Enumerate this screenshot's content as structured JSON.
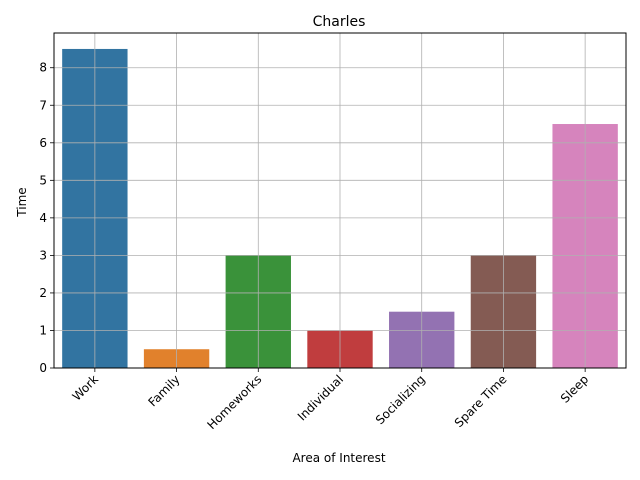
{
  "chart_data": {
    "type": "bar",
    "title": "Charles",
    "xlabel": "Area of Interest",
    "ylabel": "Time",
    "categories": [
      "Work",
      "Family",
      "Homeworks",
      "Individual",
      "Socializing",
      "Spare Time",
      "Sleep"
    ],
    "values": [
      8.5,
      0.5,
      3.0,
      1.0,
      1.5,
      3.0,
      6.5
    ],
    "colors": [
      "#3274a1",
      "#e1812c",
      "#3a923a",
      "#c03d3e",
      "#9372b2",
      "#845b53",
      "#d684bd"
    ],
    "yticks": [
      "0",
      "1",
      "2",
      "3",
      "4",
      "5",
      "6",
      "7",
      "8"
    ],
    "ylim": [
      0,
      8.925
    ],
    "grid": true,
    "legend": "none"
  }
}
